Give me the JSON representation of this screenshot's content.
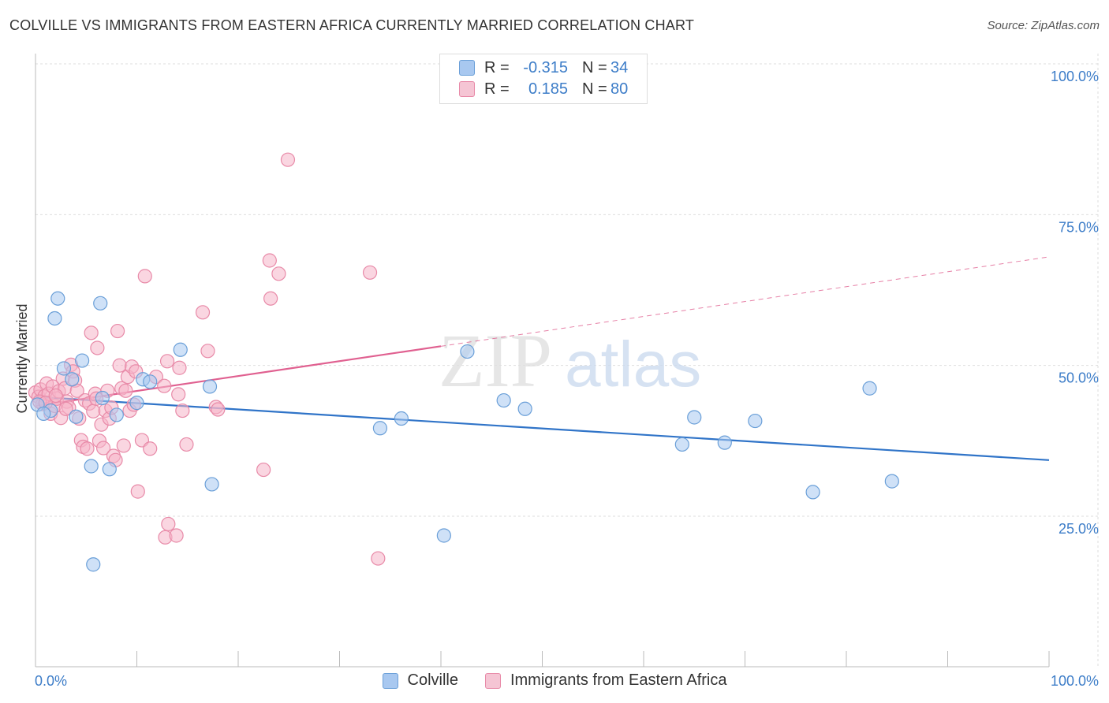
{
  "title": "COLVILLE VS IMMIGRANTS FROM EASTERN AFRICA CURRENTLY MARRIED CORRELATION CHART",
  "source": "Source: ZipAtlas.com",
  "watermark": {
    "zip": "ZIP",
    "atlas": "atlas"
  },
  "colors": {
    "blue_fill": "#a8c8f0",
    "blue_stroke": "#6a9fd8",
    "blue_line": "#3074c8",
    "pink_fill": "#f5b5c8",
    "pink_stroke": "#e88aa8",
    "pink_line": "#e06090",
    "tick_text": "#3d7dc8",
    "grid": "#dddddd"
  },
  "legend": {
    "r_label": "R =",
    "n_label": "N =",
    "series": [
      {
        "r": "-0.315",
        "n": "34"
      },
      {
        "r": "0.185",
        "n": "80"
      }
    ]
  },
  "chart_data": {
    "type": "scatter",
    "title": "COLVILLE VS IMMIGRANTS FROM EASTERN AFRICA CURRENTLY MARRIED CORRELATION CHART",
    "xlabel": "",
    "ylabel": "Currently Married",
    "xlim": [
      0,
      100
    ],
    "ylim": [
      0,
      105
    ],
    "x_tick_labels": [
      "0.0%",
      "100.0%"
    ],
    "y_ticks": [
      25,
      50,
      75,
      100
    ],
    "y_tick_labels": [
      "25.0%",
      "50.0%",
      "75.0%",
      "100.0%"
    ],
    "grid": true,
    "series": [
      {
        "name": "Colville",
        "r": -0.315,
        "n": 34,
        "trend": {
          "x0": 0,
          "y0": 44.8,
          "x1": 100,
          "y1": 34.3,
          "solid_to": 100
        },
        "points": [
          [
            0.2,
            43.5
          ],
          [
            1.5,
            42.5
          ],
          [
            1.9,
            57.8
          ],
          [
            2.2,
            61.1
          ],
          [
            2.8,
            49.5
          ],
          [
            3.6,
            47.7
          ],
          [
            4.0,
            41.5
          ],
          [
            4.6,
            50.8
          ],
          [
            5.5,
            33.3
          ],
          [
            5.7,
            17.0
          ],
          [
            6.4,
            60.3
          ],
          [
            6.6,
            44.6
          ],
          [
            7.3,
            32.8
          ],
          [
            8.0,
            41.8
          ],
          [
            10.0,
            43.8
          ],
          [
            10.6,
            47.7
          ],
          [
            11.3,
            47.3
          ],
          [
            14.3,
            52.6
          ],
          [
            17.2,
            46.5
          ],
          [
            17.4,
            30.3
          ],
          [
            34.0,
            39.6
          ],
          [
            36.1,
            41.2
          ],
          [
            40.3,
            21.8
          ],
          [
            42.6,
            52.3
          ],
          [
            46.2,
            44.2
          ],
          [
            48.3,
            42.8
          ],
          [
            63.8,
            36.9
          ],
          [
            65.0,
            41.4
          ],
          [
            68.0,
            37.2
          ],
          [
            71.0,
            40.8
          ],
          [
            76.7,
            29.0
          ],
          [
            82.3,
            46.2
          ],
          [
            84.5,
            30.8
          ],
          [
            0.8,
            42.0
          ]
        ]
      },
      {
        "name": "Immigrants from Eastern Africa",
        "r": 0.185,
        "n": 80,
        "trend": {
          "x0": 0,
          "y0": 43.3,
          "x1": 100,
          "y1": 68.0,
          "solid_to": 40
        },
        "points": [
          [
            0.0,
            45.5
          ],
          [
            0.3,
            44.8
          ],
          [
            0.5,
            46.0
          ],
          [
            0.7,
            43.6
          ],
          [
            0.9,
            44.9
          ],
          [
            1.1,
            47.0
          ],
          [
            1.3,
            45.3
          ],
          [
            1.5,
            42.0
          ],
          [
            1.7,
            46.5
          ],
          [
            1.9,
            43.3
          ],
          [
            2.1,
            44.5
          ],
          [
            2.3,
            45.7
          ],
          [
            2.5,
            41.3
          ],
          [
            2.7,
            47.8
          ],
          [
            2.9,
            46.2
          ],
          [
            3.1,
            44.0
          ],
          [
            3.3,
            43.0
          ],
          [
            3.5,
            50.1
          ],
          [
            3.7,
            49.0
          ],
          [
            3.9,
            47.5
          ],
          [
            4.1,
            45.8
          ],
          [
            4.3,
            41.2
          ],
          [
            4.5,
            37.6
          ],
          [
            4.7,
            36.5
          ],
          [
            4.9,
            44.2
          ],
          [
            5.1,
            36.2
          ],
          [
            5.3,
            43.7
          ],
          [
            5.5,
            55.4
          ],
          [
            5.7,
            42.4
          ],
          [
            5.9,
            45.3
          ],
          [
            6.1,
            52.9
          ],
          [
            6.3,
            37.5
          ],
          [
            6.5,
            40.2
          ],
          [
            6.7,
            36.3
          ],
          [
            6.9,
            42.5
          ],
          [
            7.1,
            45.8
          ],
          [
            7.3,
            41.2
          ],
          [
            7.5,
            43.0
          ],
          [
            7.7,
            35.0
          ],
          [
            7.9,
            34.3
          ],
          [
            8.1,
            55.7
          ],
          [
            8.3,
            50.0
          ],
          [
            8.5,
            46.2
          ],
          [
            8.7,
            36.7
          ],
          [
            8.9,
            45.8
          ],
          [
            9.1,
            48.1
          ],
          [
            9.3,
            42.5
          ],
          [
            9.5,
            49.8
          ],
          [
            9.7,
            43.5
          ],
          [
            9.9,
            49.0
          ],
          [
            10.1,
            29.1
          ],
          [
            10.5,
            37.6
          ],
          [
            10.8,
            64.8
          ],
          [
            11.3,
            36.2
          ],
          [
            11.9,
            48.1
          ],
          [
            12.7,
            46.6
          ],
          [
            13.0,
            50.7
          ],
          [
            13.1,
            23.7
          ],
          [
            12.8,
            21.5
          ],
          [
            14.1,
            45.2
          ],
          [
            14.2,
            49.6
          ],
          [
            13.9,
            21.8
          ],
          [
            14.5,
            42.5
          ],
          [
            14.9,
            36.9
          ],
          [
            16.5,
            58.8
          ],
          [
            17.0,
            52.4
          ],
          [
            17.8,
            43.1
          ],
          [
            18.0,
            42.7
          ],
          [
            22.5,
            32.7
          ],
          [
            23.1,
            67.4
          ],
          [
            23.2,
            61.1
          ],
          [
            24.0,
            65.2
          ],
          [
            24.9,
            84.1
          ],
          [
            33.0,
            65.4
          ],
          [
            33.8,
            18.0
          ],
          [
            0.4,
            44.0
          ],
          [
            1.0,
            43.8
          ],
          [
            2.0,
            45.0
          ],
          [
            3.0,
            42.8
          ],
          [
            6.0,
            44.5
          ]
        ]
      }
    ]
  }
}
